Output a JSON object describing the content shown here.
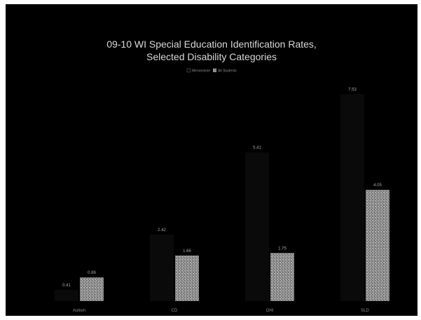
{
  "chart_data": {
    "type": "bar",
    "title_lines": [
      "09-10 WI Special Education Identification Rates,",
      "Selected Disability Categories"
    ],
    "legend": [
      "Menominee",
      "All Students"
    ],
    "categories": [
      "Autism",
      "CD",
      "OHI",
      "SLD"
    ],
    "series": [
      {
        "name": "Menominee",
        "values": [
          0.41,
          2.42,
          5.41,
          7.53
        ],
        "labels": [
          "0.41",
          "2.42",
          "5.41",
          "7.53"
        ],
        "color": "#0a0a0a"
      },
      {
        "name": "All Students",
        "values": [
          0.86,
          1.66,
          1.75,
          4.05
        ],
        "labels": [
          "0.86",
          "1.66",
          "1.75",
          "4.05"
        ],
        "color": "#a0a0a0"
      }
    ],
    "ylim": [
      0,
      8
    ],
    "grid": false,
    "legend_position": "top"
  }
}
